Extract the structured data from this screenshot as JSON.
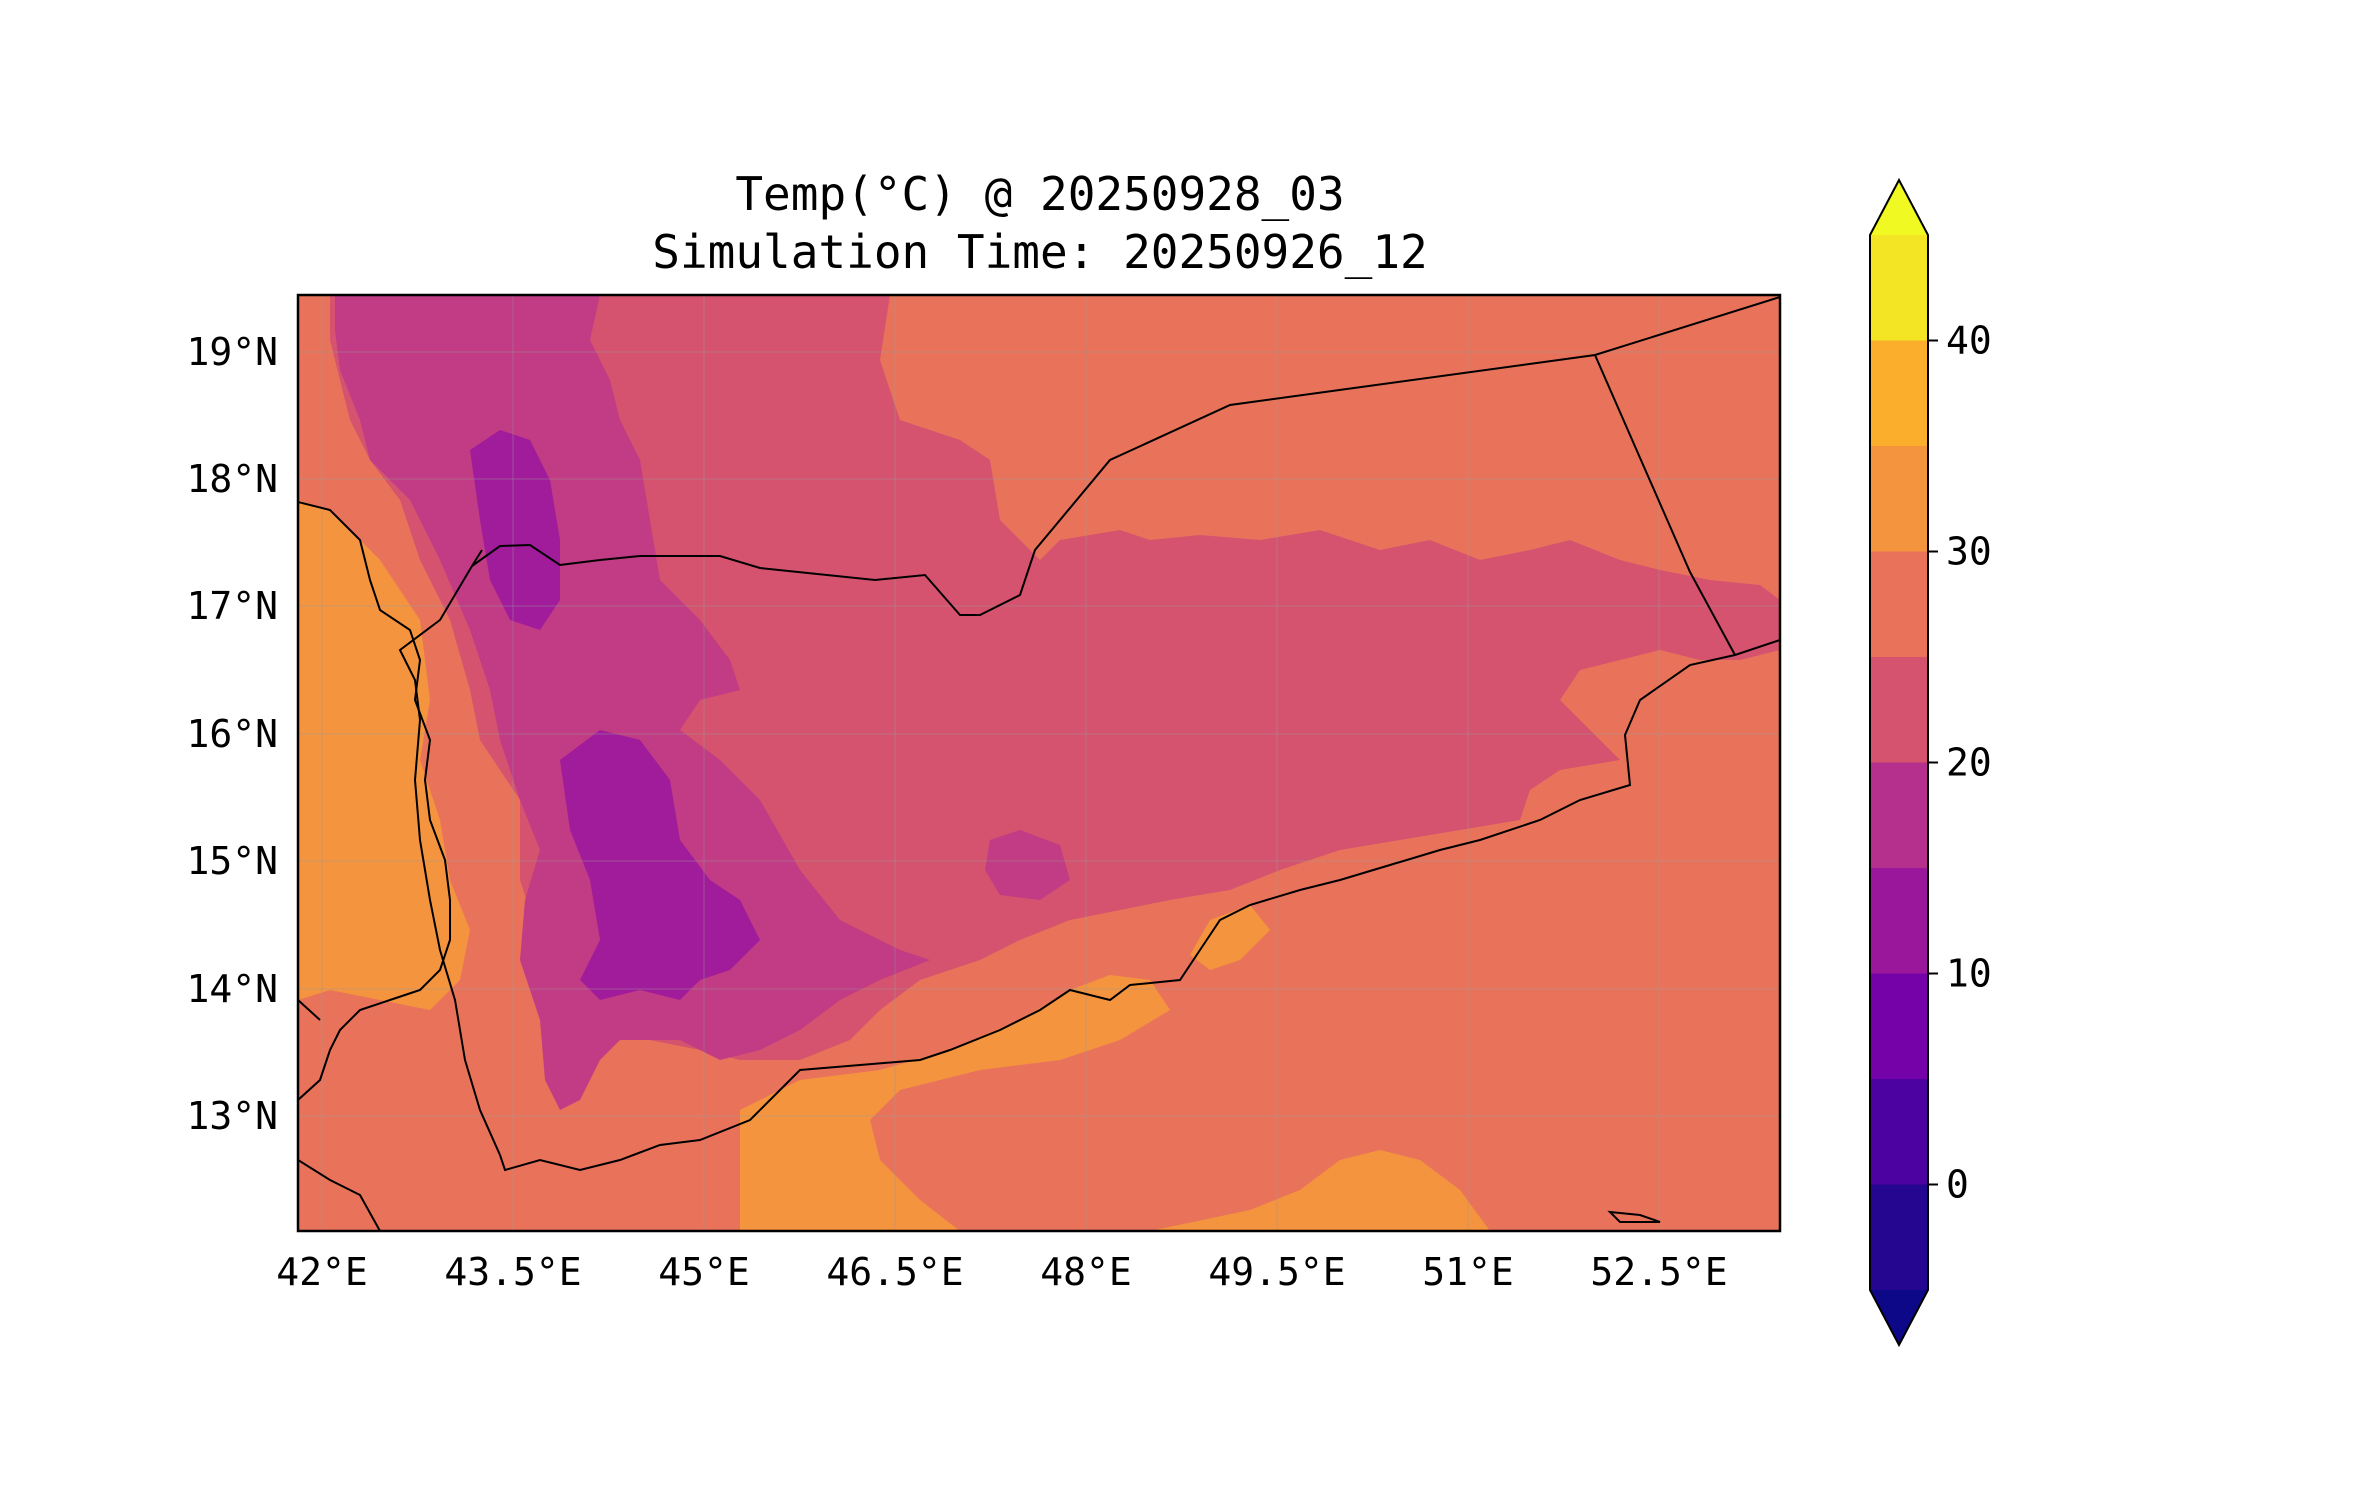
{
  "figure": {
    "title_line1": "Temp(°C) @ 20250928_03",
    "title_line2": "Simulation Time: 20250926_12"
  },
  "map": {
    "region": "Yemen and surrounding Arabian Peninsula / Red Sea / Gulf of Aden",
    "variable": "Temp(°C)",
    "lon_range": [
      41.7,
      53.5
    ],
    "lat_range": [
      12.1,
      19.45
    ],
    "lon_ticks": [
      "42°E",
      "43.5°E",
      "45°E",
      "46.5°E",
      "48°E",
      "49.5°E",
      "51°E",
      "52.5°E"
    ],
    "lat_ticks": [
      "19°N",
      "18°N",
      "17°N",
      "16°N",
      "15°N",
      "14°N",
      "13°N"
    ],
    "grid": true,
    "colors": {
      "band_25_30": "#e8735a",
      "band_20_25": "#d5536f",
      "band_15_20": "#c13b85",
      "band_10_15": "#a11c9b",
      "band_5_10": "#8a0ba5",
      "band_30_35": "#f5943f",
      "band_35_40": "#fbad2c",
      "coastline": "#000000"
    }
  },
  "colorbar": {
    "ticks": [
      "0",
      "10",
      "20",
      "30",
      "40"
    ],
    "levels": [
      -5,
      0,
      5,
      10,
      15,
      20,
      25,
      30,
      35,
      40,
      45
    ],
    "extend": "both",
    "band_colors": [
      "#240691",
      "#4c02a1",
      "#7501a8",
      "#9a179b",
      "#b52f8c",
      "#d5536f",
      "#e8735a",
      "#f5943f",
      "#fbad2c",
      "#f3e523"
    ],
    "under_color": "#0d0887",
    "over_color": "#f0f921"
  }
}
